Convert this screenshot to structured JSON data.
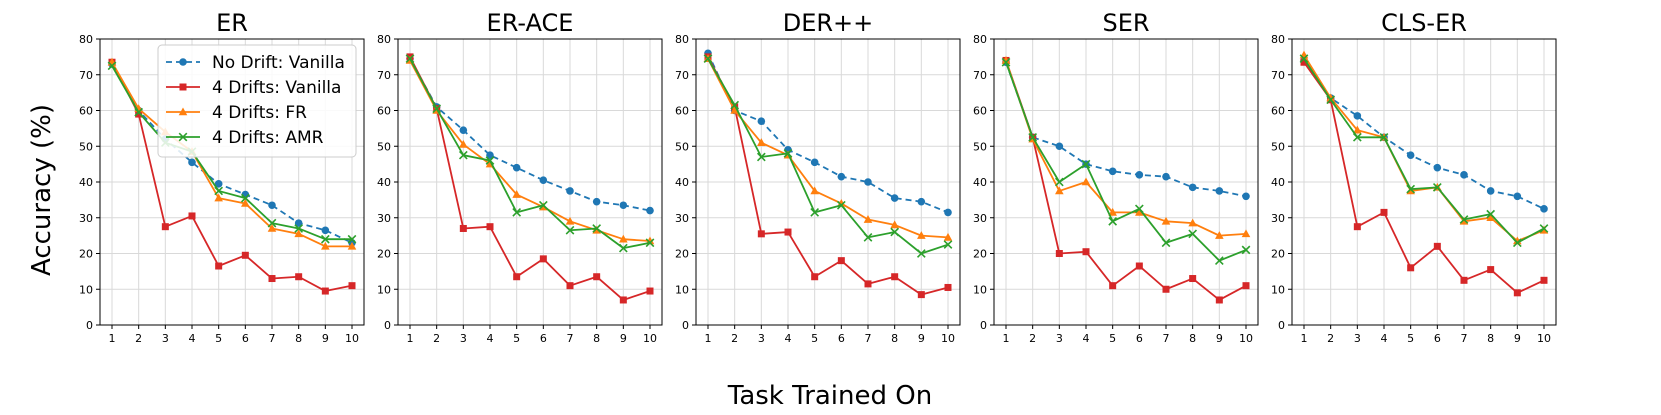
{
  "figure": {
    "ylabel": "Accuracy (%)",
    "xlabel": "Task Trained On"
  },
  "colors": {
    "no_drift_vanilla": "#1f77b4",
    "drift_vanilla": "#d62728",
    "drift_fr": "#ff7f0e",
    "drift_amr": "#2ca02c",
    "grid": "#d9d9d9"
  },
  "legend": [
    {
      "label": "No Drift: Vanilla",
      "marker": "circle",
      "dashed": true
    },
    {
      "label": "4 Drifts: Vanilla",
      "marker": "square",
      "dashed": false
    },
    {
      "label": "4 Drifts: FR",
      "marker": "triangle",
      "dashed": false
    },
    {
      "label": "4 Drifts: AMR",
      "marker": "x",
      "dashed": false
    }
  ],
  "chart_data": [
    {
      "type": "line",
      "title": "ER",
      "categories": [
        "1",
        "2",
        "3",
        "4",
        "5",
        "6",
        "7",
        "8",
        "9",
        "10"
      ],
      "yticks": [
        "0",
        "10",
        "20",
        "30",
        "40",
        "50",
        "60",
        "70",
        "80"
      ],
      "ylim": [
        0,
        80
      ],
      "grid": true,
      "legend": "top-right",
      "series": [
        {
          "name": "No Drift: Vanilla",
          "values": [
            73,
            60,
            52,
            45.5,
            39.5,
            36.5,
            33.5,
            28.5,
            26.5,
            23
          ]
        },
        {
          "name": "4 Drifts: Vanilla",
          "values": [
            73.5,
            59,
            27.5,
            30.5,
            16.5,
            19.5,
            13,
            13.5,
            9.5,
            11
          ]
        },
        {
          "name": "4 Drifts: FR",
          "values": [
            73.5,
            60.5,
            54,
            48.5,
            35.5,
            34,
            27,
            25.5,
            22,
            22
          ]
        },
        {
          "name": "4 Drifts: AMR",
          "values": [
            72.5,
            59.5,
            51,
            48.5,
            37.5,
            35.5,
            28.5,
            27,
            24,
            24
          ]
        }
      ]
    },
    {
      "type": "line",
      "title": "ER-ACE",
      "categories": [
        "1",
        "2",
        "3",
        "4",
        "5",
        "6",
        "7",
        "8",
        "9",
        "10"
      ],
      "yticks": [
        "0",
        "10",
        "20",
        "30",
        "40",
        "50",
        "60",
        "70",
        "80"
      ],
      "ylim": [
        0,
        80
      ],
      "grid": true,
      "series": [
        {
          "name": "No Drift: Vanilla",
          "values": [
            74.5,
            61,
            54.5,
            47.5,
            44,
            40.5,
            37.5,
            34.5,
            33.5,
            32
          ]
        },
        {
          "name": "4 Drifts: Vanilla",
          "values": [
            75,
            60.5,
            27,
            27.5,
            13.5,
            18.5,
            11,
            13.5,
            7,
            9.5
          ]
        },
        {
          "name": "4 Drifts: FR",
          "values": [
            74,
            60,
            50.5,
            45,
            36.5,
            33,
            29,
            26.5,
            24,
            23.5
          ]
        },
        {
          "name": "4 Drifts: AMR",
          "values": [
            74.5,
            60.5,
            47.5,
            46,
            31.5,
            33.5,
            26.5,
            27,
            21.5,
            23
          ]
        }
      ]
    },
    {
      "type": "line",
      "title": "DER++",
      "categories": [
        "1",
        "2",
        "3",
        "4",
        "5",
        "6",
        "7",
        "8",
        "9",
        "10"
      ],
      "yticks": [
        "0",
        "10",
        "20",
        "30",
        "40",
        "50",
        "60",
        "70",
        "80"
      ],
      "ylim": [
        0,
        80
      ],
      "grid": true,
      "series": [
        {
          "name": "No Drift: Vanilla",
          "values": [
            76,
            60,
            57,
            49,
            45.5,
            41.5,
            40,
            35.5,
            34.5,
            31.5
          ]
        },
        {
          "name": "4 Drifts: Vanilla",
          "values": [
            75,
            61,
            25.5,
            26,
            13.5,
            18,
            11.5,
            13.5,
            8.5,
            10.5
          ]
        },
        {
          "name": "4 Drifts: FR",
          "values": [
            74.5,
            60,
            51,
            47.5,
            37.5,
            34,
            29.5,
            28,
            25,
            24.5
          ]
        },
        {
          "name": "4 Drifts: AMR",
          "values": [
            74.5,
            61.5,
            47,
            48,
            31.5,
            33.5,
            24.5,
            26,
            20,
            22.5
          ]
        }
      ]
    },
    {
      "type": "line",
      "title": "SER",
      "categories": [
        "1",
        "2",
        "3",
        "4",
        "5",
        "6",
        "7",
        "8",
        "9",
        "10"
      ],
      "yticks": [
        "0",
        "10",
        "20",
        "30",
        "40",
        "50",
        "60",
        "70",
        "80"
      ],
      "ylim": [
        0,
        80
      ],
      "grid": true,
      "series": [
        {
          "name": "No Drift: Vanilla",
          "values": [
            73.5,
            52.5,
            50,
            45,
            43,
            42,
            41.5,
            38.5,
            37.5,
            36
          ]
        },
        {
          "name": "4 Drifts: Vanilla",
          "values": [
            74,
            52.5,
            20,
            20.5,
            11,
            16.5,
            10,
            13,
            7,
            11
          ]
        },
        {
          "name": "4 Drifts: FR",
          "values": [
            74,
            52,
            37.5,
            40,
            31.5,
            31.5,
            29,
            28.5,
            25,
            25.5
          ]
        },
        {
          "name": "4 Drifts: AMR",
          "values": [
            73.5,
            52.5,
            40,
            45,
            29,
            32.5,
            23,
            25.5,
            18,
            21
          ]
        }
      ]
    },
    {
      "type": "line",
      "title": "CLS-ER",
      "categories": [
        "1",
        "2",
        "3",
        "4",
        "5",
        "6",
        "7",
        "8",
        "9",
        "10"
      ],
      "yticks": [
        "0",
        "10",
        "20",
        "30",
        "40",
        "50",
        "60",
        "70",
        "80"
      ],
      "ylim": [
        0,
        80
      ],
      "grid": true,
      "series": [
        {
          "name": "No Drift: Vanilla",
          "values": [
            74,
            63.5,
            58.5,
            52.5,
            47.5,
            44,
            42,
            37.5,
            36,
            32.5
          ]
        },
        {
          "name": "4 Drifts: Vanilla",
          "values": [
            73.5,
            63,
            27.5,
            31.5,
            16,
            22,
            12.5,
            15.5,
            9,
            12.5
          ]
        },
        {
          "name": "4 Drifts: FR",
          "values": [
            75.5,
            63.5,
            54.5,
            52.5,
            37.5,
            38.5,
            29,
            30,
            23.5,
            26.5
          ]
        },
        {
          "name": "4 Drifts: AMR",
          "values": [
            74.5,
            63,
            52.5,
            52.5,
            38,
            38.5,
            29.5,
            31,
            23,
            27
          ]
        }
      ]
    }
  ]
}
